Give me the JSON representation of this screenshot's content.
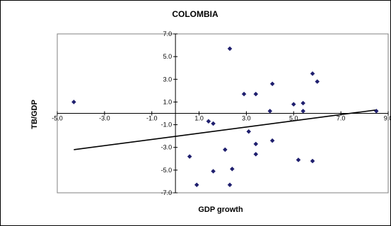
{
  "chart_data": {
    "type": "scatter",
    "title": "COLOMBIA",
    "xlabel": "GDP growth",
    "ylabel": "TB/GDP",
    "xlim": [
      -5.0,
      9.0
    ],
    "ylim": [
      -7.0,
      7.0
    ],
    "x_ticks": [
      "-5.0",
      "-3.0",
      "-1.0",
      "1.0",
      "3.0",
      "5.0",
      "7.0",
      "9.0"
    ],
    "y_ticks": [
      "7.0",
      "5.0",
      "3.0",
      "1.0",
      "-1.0",
      "-3.0",
      "-5.0",
      "-7.0"
    ],
    "grid": false,
    "legend": "none",
    "colors": {
      "marker": "#1f1f6e",
      "trend_line": "#000000",
      "axis": "#000000",
      "border": "#000000"
    },
    "points": [
      {
        "x": -4.3,
        "y": 1.0
      },
      {
        "x": 0.6,
        "y": -3.8
      },
      {
        "x": 0.9,
        "y": -6.3
      },
      {
        "x": 1.4,
        "y": -0.7
      },
      {
        "x": 1.6,
        "y": -0.9
      },
      {
        "x": 1.6,
        "y": -5.1
      },
      {
        "x": 2.1,
        "y": -3.2
      },
      {
        "x": 2.3,
        "y": 5.7
      },
      {
        "x": 2.3,
        "y": -6.3
      },
      {
        "x": 2.4,
        "y": -4.9
      },
      {
        "x": 2.9,
        "y": 1.7
      },
      {
        "x": 3.1,
        "y": -1.6
      },
      {
        "x": 3.4,
        "y": 1.7
      },
      {
        "x": 3.4,
        "y": -2.7
      },
      {
        "x": 3.4,
        "y": -3.6
      },
      {
        "x": 4.0,
        "y": 0.2
      },
      {
        "x": 4.1,
        "y": 2.6
      },
      {
        "x": 4.1,
        "y": -2.4
      },
      {
        "x": 5.0,
        "y": 0.8
      },
      {
        "x": 5.2,
        "y": -4.1
      },
      {
        "x": 5.4,
        "y": 0.9
      },
      {
        "x": 5.4,
        "y": 0.2
      },
      {
        "x": 5.8,
        "y": 3.5
      },
      {
        "x": 5.8,
        "y": -4.2
      },
      {
        "x": 6.0,
        "y": 2.8
      },
      {
        "x": 8.5,
        "y": 0.2
      }
    ],
    "trendline": {
      "x": [
        -4.3,
        8.5
      ],
      "y": [
        -3.2,
        0.3
      ]
    }
  }
}
